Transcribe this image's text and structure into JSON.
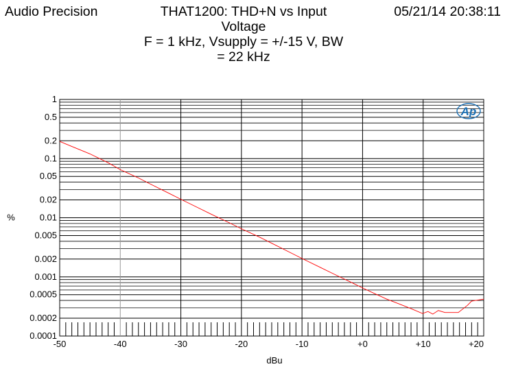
{
  "header": {
    "brand": "Audio Precision",
    "timestamp": "05/21/14 20:38:11",
    "title_lines": [
      "THAT1200: THD+N vs Input",
      "Voltage",
      "F = 1 kHz, Vsupply = +/-15 V, BW",
      "= 22 kHz"
    ]
  },
  "logo_text": "Ap",
  "colors": {
    "trace": "#ff0000",
    "background": "#ffffff",
    "grid": "#000000"
  },
  "chart_data": {
    "type": "line",
    "title": "THAT1200: THD+N vs Input Voltage F = 1 kHz, Vsupply = +/-15 V, BW = 22 kHz",
    "xlabel": "dBu",
    "ylabel": "%",
    "xlim": [
      -50,
      20
    ],
    "ylim": [
      0.0001,
      1
    ],
    "yscale": "log",
    "grid": true,
    "x_tick_labels": [
      "-50",
      "-40",
      "-30",
      "-20",
      "-10",
      "+0",
      "+10",
      "+20"
    ],
    "x_tick_values": [
      -50,
      -40,
      -30,
      -20,
      -10,
      0,
      10,
      20
    ],
    "y_tick_labels": [
      "1",
      "0.5",
      "0.2",
      "0.1",
      "0.05",
      "0.02",
      "0.01",
      "0.005",
      "0.002",
      "0.001",
      "0.0005",
      "0.0002",
      "0.0001"
    ],
    "y_tick_values": [
      1,
      0.5,
      0.2,
      0.1,
      0.05,
      0.02,
      0.01,
      0.005,
      0.002,
      0.001,
      0.0005,
      0.0002,
      0.0001
    ],
    "series": [
      {
        "color": "#ff0000",
        "x": [
          -50,
          -48,
          -45,
          -42,
          -40,
          -37,
          -35,
          -32,
          -30,
          -27,
          -25,
          -22,
          -20,
          -17,
          -15,
          -12,
          -10,
          -7,
          -5,
          -2,
          0,
          2,
          4,
          6,
          8,
          9.9,
          10.8,
          11.6,
          12.5,
          13.6,
          14.6,
          15.8,
          17.3,
          18,
          20
        ],
        "y": [
          0.195,
          0.16,
          0.12,
          0.085,
          0.065,
          0.047,
          0.037,
          0.026,
          0.0205,
          0.0145,
          0.0115,
          0.0082,
          0.0065,
          0.0047,
          0.0037,
          0.0026,
          0.00205,
          0.00145,
          0.00115,
          0.00082,
          0.00065,
          0.00052,
          0.00042,
          0.00035,
          0.00029,
          0.00024,
          0.00026,
          0.000235,
          0.00027,
          0.00025,
          0.00025,
          0.00025,
          0.00033,
          0.00039,
          0.00042
        ]
      }
    ]
  }
}
